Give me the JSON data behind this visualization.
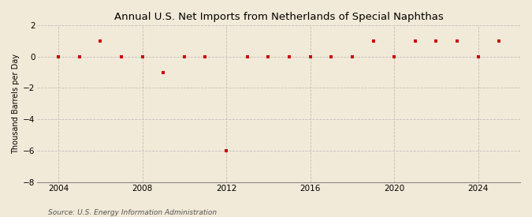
{
  "title": "Annual U.S. Net Imports from Netherlands of Special Naphthas",
  "ylabel": "Thousand Barrels per Day",
  "source": "Source: U.S. Energy Information Administration",
  "xlim": [
    2003,
    2026
  ],
  "ylim": [
    -8,
    2
  ],
  "yticks": [
    -8,
    -6,
    -4,
    -2,
    0,
    2
  ],
  "xticks": [
    2004,
    2008,
    2012,
    2016,
    2020,
    2024
  ],
  "background_color": "#f2ead8",
  "plot_background_color": "#f2ead8",
  "marker_color": "#cc0000",
  "grid_color": "#bbbbbb",
  "years": [
    2004,
    2005,
    2006,
    2007,
    2008,
    2009,
    2010,
    2011,
    2012,
    2013,
    2014,
    2015,
    2016,
    2017,
    2018,
    2019,
    2020,
    2021,
    2022,
    2023,
    2024,
    2025
  ],
  "values": [
    0,
    0,
    1,
    0,
    0,
    -1,
    0,
    0,
    -6,
    0,
    0,
    0,
    0,
    0,
    0,
    1,
    0,
    1,
    1,
    1,
    0,
    1
  ]
}
